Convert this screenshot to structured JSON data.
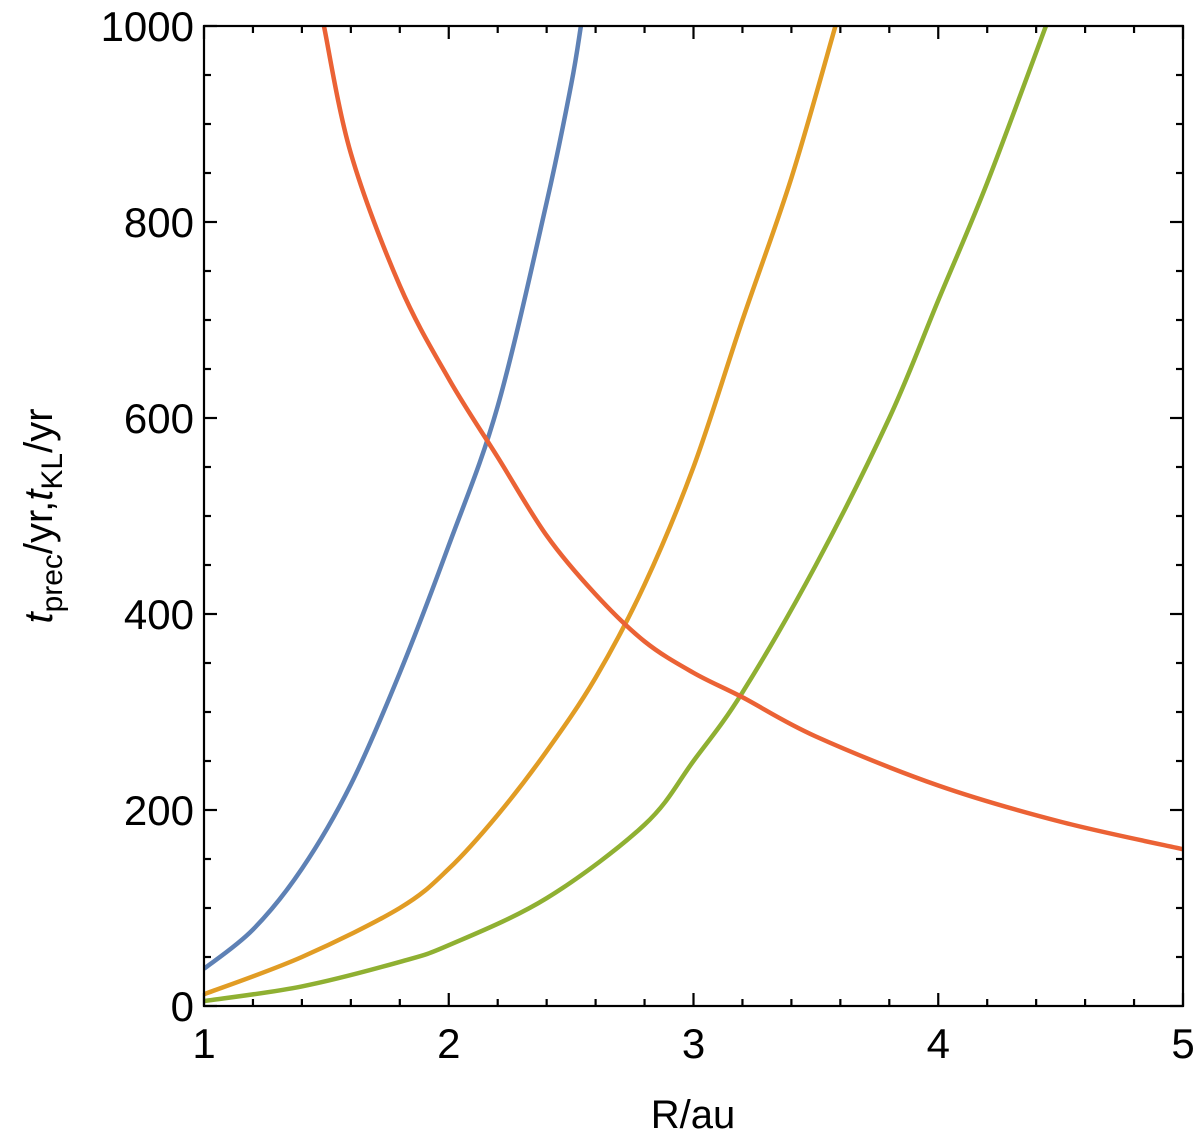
{
  "chart_data": {
    "type": "line",
    "title": "",
    "xlabel": "R/au",
    "ylabel": {
      "t1": "t",
      "sub1": "prec",
      "mid": "/yr,",
      "t2": "t",
      "sub2": "KL",
      "tail": "/yr"
    },
    "xlim": [
      1,
      5
    ],
    "ylim": [
      0,
      1000
    ],
    "x_ticks": [
      1,
      2,
      3,
      4,
      5
    ],
    "x_tick_labels": [
      "1",
      "2",
      "3",
      "4",
      "5"
    ],
    "x_minor_step": 0.2,
    "y_ticks": [
      0,
      200,
      400,
      600,
      800,
      1000
    ],
    "y_tick_labels": [
      "0",
      "200",
      "400",
      "600",
      "800",
      "1000"
    ],
    "y_minor_step": 50,
    "grid": false,
    "legend": "none",
    "series": [
      {
        "color": "#5E81B5",
        "x": [
          1.0,
          1.2,
          1.4,
          1.6,
          1.8,
          2.0,
          2.2,
          2.4,
          2.5,
          2.54
        ],
        "y": [
          38,
          78,
          140,
          226,
          340,
          470,
          612,
          820,
          940,
          1000
        ]
      },
      {
        "color": "#E19C24",
        "x": [
          1.0,
          1.4,
          1.8,
          2.0,
          2.2,
          2.4,
          2.6,
          2.8,
          3.0,
          3.2,
          3.4,
          3.58
        ],
        "y": [
          12,
          50,
          100,
          140,
          195,
          260,
          335,
          430,
          550,
          700,
          845,
          1000
        ]
      },
      {
        "color": "#8FB032",
        "x": [
          1.0,
          1.4,
          1.8,
          2.0,
          2.4,
          2.8,
          3.0,
          3.2,
          3.5,
          3.8,
          4.0,
          4.2,
          4.44
        ],
        "y": [
          5,
          20,
          45,
          62,
          110,
          185,
          250,
          320,
          450,
          600,
          720,
          840,
          1000
        ]
      },
      {
        "color": "#EB6235",
        "x": [
          1.49,
          1.6,
          1.8,
          2.0,
          2.2,
          2.4,
          2.6,
          2.8,
          3.0,
          3.2,
          3.5,
          4.0,
          4.5,
          5.0
        ],
        "y": [
          1000,
          870,
          735,
          640,
          560,
          480,
          420,
          372,
          340,
          315,
          275,
          225,
          188,
          160
        ]
      }
    ]
  }
}
